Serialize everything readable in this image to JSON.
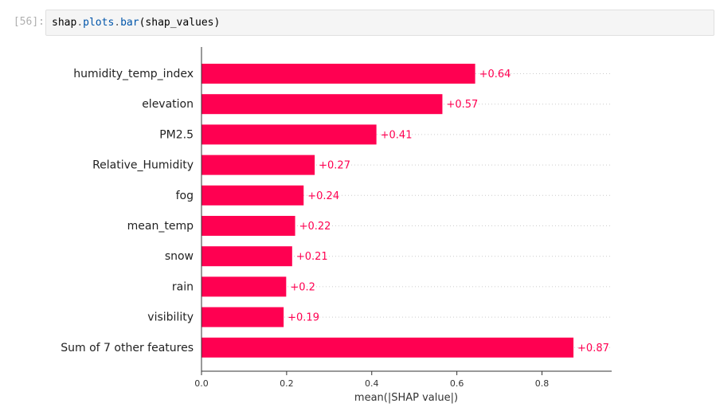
{
  "cell": {
    "prompt": "[56]:",
    "code": {
      "obj": "shap",
      "dot1": ".",
      "attr1": "plots",
      "dot2": ".",
      "attr2": "bar",
      "args": "(shap_values)"
    }
  },
  "chart_data": {
    "type": "bar",
    "orientation": "horizontal",
    "categories": [
      "humidity_temp_index",
      "elevation",
      "PM2.5",
      "Relative_Humidity",
      "fog",
      "mean_temp",
      "snow",
      "rain",
      "visibility",
      "Sum of 7 other features"
    ],
    "values": [
      0.643,
      0.566,
      0.411,
      0.266,
      0.24,
      0.22,
      0.213,
      0.199,
      0.193,
      0.874
    ],
    "value_labels": [
      "+0.64",
      "+0.57",
      "+0.41",
      "+0.27",
      "+0.24",
      "+0.22",
      "+0.21",
      "+0.2",
      "+0.19",
      "+0.87"
    ],
    "xlabel": "mean(|SHAP value|)",
    "x_ticks": [
      0.0,
      0.2,
      0.4,
      0.6,
      0.8
    ],
    "x_tick_labels": [
      "0.0",
      "0.2",
      "0.4",
      "0.6",
      "0.8"
    ],
    "xlim": [
      0,
      0.965
    ],
    "bar_color": "#ff0051",
    "label_color": "#ff0051",
    "grid": "dotted horizontal per row",
    "legend": "none"
  }
}
